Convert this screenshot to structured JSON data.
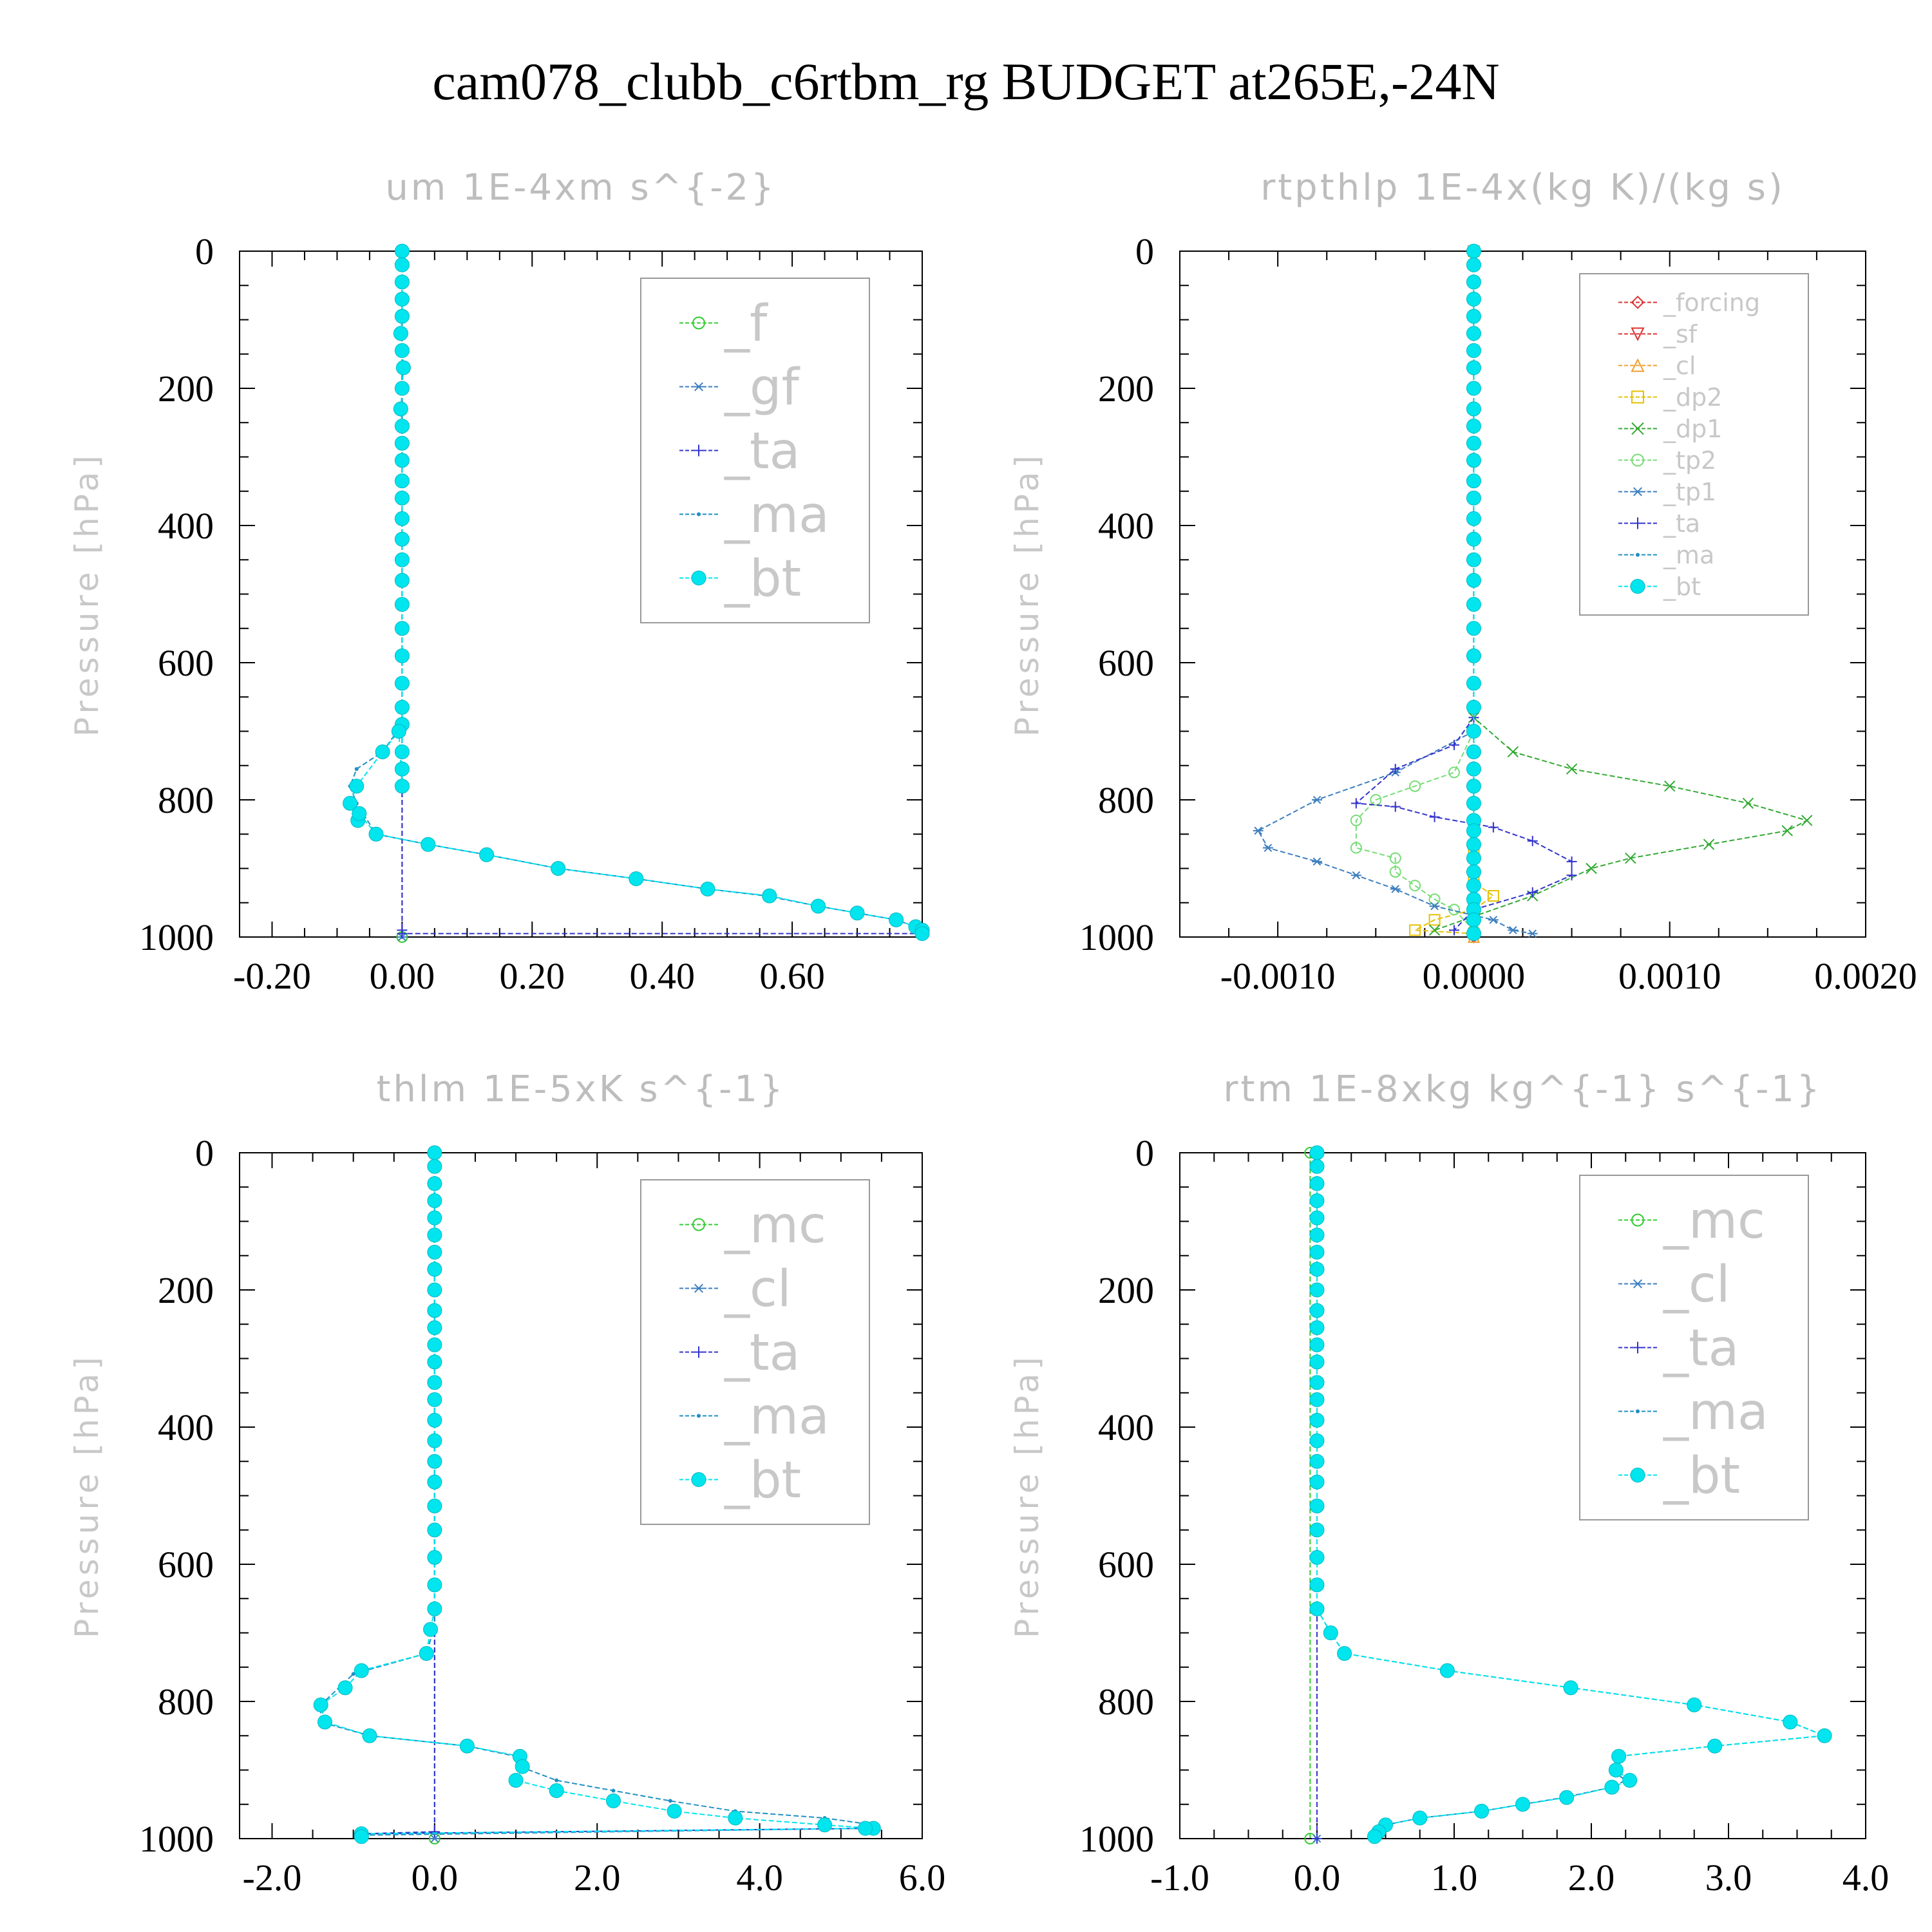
{
  "title": "cam078_clubb_c6rtbm_rg  BUDGET at265E,-24N",
  "chart_data": [
    {
      "type": "line",
      "title": "um   1E-4xm s^{-2}",
      "ylabel": "Pressure [hPa]",
      "xlim": [
        -0.25,
        0.8
      ],
      "ylim": [
        0,
        1000
      ],
      "y_inverted": true,
      "xticks": [
        -0.2,
        0.0,
        0.2,
        0.4,
        0.6
      ],
      "xtick_labels": [
        "-0.20",
        "0.00",
        "0.20",
        "0.40",
        "0.60"
      ],
      "yticks": [
        0,
        200,
        400,
        600,
        800,
        1000
      ],
      "ytick_labels": [
        "0",
        "200",
        "400",
        "600",
        "800",
        "1000"
      ],
      "legend_size": "large",
      "series": [
        {
          "name": "_f",
          "color": "#33cc33",
          "marker": "circle",
          "x": [
            0.0,
            0.0
          ],
          "y": [
            0,
            1000
          ]
        },
        {
          "name": "_gf",
          "color": "#3d7fbf",
          "marker": "star",
          "x": [
            0.0,
            0.0
          ],
          "y": [
            0,
            1000
          ]
        },
        {
          "name": "_ta",
          "color": "#3333cc",
          "marker": "plus",
          "x": [
            0.0,
            0.0,
            0.0,
            0.8
          ],
          "y": [
            0,
            990,
            995,
            995
          ]
        },
        {
          "name": "_ma",
          "color": "#1f8fc4",
          "marker": "dot",
          "x": [
            0.0,
            0.0,
            -0.03,
            -0.07,
            -0.08,
            -0.07,
            -0.04,
            0.04,
            0.13,
            0.24,
            0.36,
            0.47,
            0.56,
            0.64,
            0.7,
            0.76,
            0.79,
            0.8
          ],
          "y": [
            0,
            690,
            730,
            755,
            780,
            805,
            850,
            865,
            880,
            900,
            915,
            930,
            940,
            955,
            965,
            975,
            985,
            995
          ]
        },
        {
          "name": "_bt",
          "color": "#00e5ee",
          "marker": "bigdot",
          "x": [
            0.0,
            0.0,
            0.0,
            0.0,
            0.0,
            -0.002,
            0.0,
            0.002,
            0.0,
            -0.002,
            0.0,
            0.0,
            0.0,
            0.0,
            0.0,
            0.0,
            0.0,
            0.0,
            0.0,
            0.0,
            0.0,
            0.0,
            0.0,
            0.0,
            0.0,
            0.0,
            0.0,
            0.0,
            -0.005,
            -0.03,
            -0.07,
            -0.08,
            -0.068,
            -0.066,
            -0.04,
            0.04,
            0.13,
            0.24,
            0.36,
            0.47,
            0.565,
            0.64,
            0.7,
            0.76,
            0.79,
            0.8,
            0.8
          ],
          "y": [
            0,
            20,
            45,
            70,
            95,
            120,
            145,
            170,
            200,
            230,
            255,
            280,
            305,
            335,
            360,
            390,
            420,
            450,
            480,
            515,
            550,
            590,
            630,
            665,
            690,
            730,
            755,
            780,
            700,
            730,
            780,
            805,
            830,
            820,
            850,
            865,
            880,
            900,
            915,
            930,
            940,
            955,
            965,
            975,
            985,
            990,
            995
          ]
        }
      ]
    },
    {
      "type": "line",
      "title": "rtpthlp   1E-4x(kg K)/(kg s)",
      "ylabel": "Pressure [hPa]",
      "xlim": [
        -0.0015,
        0.002
      ],
      "ylim": [
        0,
        1000
      ],
      "y_inverted": true,
      "xticks": [
        -0.001,
        0.0,
        0.001,
        0.002
      ],
      "xtick_labels": [
        "-0.0010",
        "0.0000",
        "0.0010",
        "0.0020"
      ],
      "yticks": [
        0,
        200,
        400,
        600,
        800,
        1000
      ],
      "ytick_labels": [
        "0",
        "200",
        "400",
        "600",
        "800",
        "1000"
      ],
      "legend_size": "small",
      "series": [
        {
          "name": "_forcing",
          "color": "#dd3333",
          "marker": "diamond",
          "x": [
            0.0,
            0.0
          ],
          "y": [
            0,
            1000
          ]
        },
        {
          "name": "_sf",
          "color": "#dd3333",
          "marker": "tridown",
          "x": [
            0.0,
            0.0
          ],
          "y": [
            0,
            1000
          ]
        },
        {
          "name": "_cl",
          "color": "#f0a030",
          "marker": "triup",
          "x": [
            0.0,
            0.0
          ],
          "y": [
            0,
            1000
          ]
        },
        {
          "name": "_dp2",
          "color": "#e6c000",
          "marker": "square",
          "x": [
            0.0,
            0.0,
            0.0,
            0.0001,
            0.0,
            -0.0002,
            -0.0003,
            0.0
          ],
          "y": [
            0,
            880,
            920,
            940,
            960,
            975,
            990,
            995
          ]
        },
        {
          "name": "_dp1",
          "color": "#33aa33",
          "marker": "x",
          "x": [
            0.0,
            0.0,
            0.0002,
            0.0005,
            0.001,
            0.0014,
            0.0017,
            0.0016,
            0.0012,
            0.0008,
            0.0006,
            0.0003,
            0.0,
            -0.0002
          ],
          "y": [
            0,
            680,
            730,
            755,
            780,
            805,
            830,
            845,
            865,
            885,
            900,
            940,
            970,
            990
          ]
        },
        {
          "name": "_tp2",
          "color": "#77dd77",
          "marker": "circle",
          "x": [
            0.0,
            -0.0001,
            -0.0003,
            -0.0005,
            -0.0006,
            -0.0006,
            -0.0004,
            -0.0004,
            -0.0003,
            -0.0002,
            -0.0001,
            0.0
          ],
          "y": [
            700,
            760,
            780,
            800,
            830,
            870,
            885,
            905,
            925,
            945,
            960,
            990
          ]
        },
        {
          "name": "_tp1",
          "color": "#3d7fbf",
          "marker": "star",
          "x": [
            0.0,
            -0.0004,
            -0.0008,
            -0.0011,
            -0.00105,
            -0.0008,
            -0.0006,
            -0.0004,
            -0.0002,
            0.0001,
            0.0002,
            0.0003
          ],
          "y": [
            700,
            760,
            800,
            845,
            870,
            890,
            910,
            930,
            955,
            975,
            990,
            995
          ]
        },
        {
          "name": "_ta",
          "color": "#3333cc",
          "marker": "plus",
          "x": [
            0.0,
            -0.0001,
            -0.0004,
            -0.0006,
            -0.0004,
            -0.0002,
            0.0001,
            0.0003,
            0.0005,
            0.0005,
            0.0003,
            0.0,
            -0.0001
          ],
          "y": [
            680,
            720,
            755,
            805,
            810,
            825,
            840,
            860,
            890,
            910,
            935,
            960,
            990
          ]
        },
        {
          "name": "_ma",
          "color": "#1f8fc4",
          "marker": "dot",
          "x": [
            0.0,
            0.0
          ],
          "y": [
            0,
            1000
          ]
        },
        {
          "name": "_bt",
          "color": "#00e5ee",
          "marker": "bigdot",
          "x": [
            0.0,
            0.0,
            0.0,
            0.0,
            0.0,
            0.0,
            0.0,
            0.0,
            0.0,
            0.0,
            0.0,
            0.0,
            0.0,
            0.0,
            0.0,
            0.0,
            0.0,
            0.0,
            0.0,
            0.0,
            0.0,
            0.0,
            0.0,
            0.0,
            0.0,
            0.0,
            0.0,
            0.0,
            0.0,
            0.0,
            0.0,
            0.0,
            0.0,
            0.0,
            0.0,
            0.0,
            0.0,
            0.0,
            0.0
          ],
          "y": [
            0,
            20,
            45,
            70,
            95,
            120,
            145,
            170,
            200,
            230,
            255,
            280,
            305,
            335,
            360,
            390,
            420,
            450,
            480,
            515,
            550,
            590,
            630,
            665,
            700,
            730,
            755,
            780,
            805,
            830,
            845,
            865,
            885,
            905,
            925,
            945,
            960,
            975,
            995
          ]
        }
      ]
    },
    {
      "type": "line",
      "title": "thlm   1E-5xK s^{-1}",
      "ylabel": "Pressure [hPa]",
      "xlim": [
        -2.4,
        6.0
      ],
      "ylim": [
        0,
        1000
      ],
      "y_inverted": true,
      "xticks": [
        -2.0,
        0.0,
        2.0,
        4.0,
        6.0
      ],
      "xtick_labels": [
        "-2.0",
        "0.0",
        "2.0",
        "4.0",
        "6.0"
      ],
      "yticks": [
        0,
        200,
        400,
        600,
        800,
        1000
      ],
      "ytick_labels": [
        "0",
        "200",
        "400",
        "600",
        "800",
        "1000"
      ],
      "legend_size": "large",
      "series": [
        {
          "name": "_mc",
          "color": "#33cc33",
          "marker": "circle",
          "x": [
            0.0,
            0.0
          ],
          "y": [
            0,
            1000
          ]
        },
        {
          "name": "_cl",
          "color": "#3d7fbf",
          "marker": "star",
          "x": [
            0.0,
            0.0
          ],
          "y": [
            0,
            1000
          ]
        },
        {
          "name": "_ta",
          "color": "#3333cc",
          "marker": "plus",
          "x": [
            0.0,
            0.0,
            -0.9,
            5.4
          ],
          "y": [
            0,
            990,
            993,
            985
          ]
        },
        {
          "name": "_ma",
          "color": "#1f8fc4",
          "marker": "dot",
          "x": [
            0.0,
            0.0,
            -0.1,
            -1.0,
            -1.4,
            -1.4,
            -0.8,
            0.4,
            1.0,
            1.05,
            1.5,
            2.2,
            2.9,
            3.7,
            4.8,
            5.4,
            5.3,
            -0.9
          ],
          "y": [
            0,
            690,
            730,
            760,
            805,
            830,
            850,
            865,
            880,
            895,
            915,
            930,
            945,
            960,
            970,
            980,
            985,
            995
          ]
        },
        {
          "name": "_bt",
          "color": "#00e5ee",
          "marker": "bigdot",
          "x": [
            0.0,
            0.0,
            0.0,
            0.0,
            0.0,
            0.0,
            0.0,
            0.0,
            0.0,
            0.0,
            0.0,
            0.0,
            0.0,
            0.0,
            0.0,
            0.0,
            0.0,
            0.0,
            0.0,
            0.0,
            0.0,
            0.0,
            0.0,
            0.0,
            -0.05,
            -0.1,
            -0.9,
            -1.1,
            -1.4,
            -1.35,
            -0.8,
            0.4,
            1.05,
            1.08,
            1.0,
            1.5,
            2.2,
            2.95,
            3.7,
            4.8,
            5.4,
            5.3,
            -0.9,
            -0.9
          ],
          "y": [
            0,
            20,
            45,
            70,
            95,
            120,
            145,
            170,
            200,
            230,
            255,
            280,
            305,
            335,
            360,
            390,
            420,
            450,
            480,
            515,
            550,
            590,
            630,
            665,
            695,
            730,
            755,
            780,
            805,
            830,
            850,
            865,
            880,
            895,
            915,
            930,
            945,
            960,
            970,
            980,
            985,
            985,
            993,
            997
          ]
        }
      ]
    },
    {
      "type": "line",
      "title": "rtm   1E-8xkg kg^{-1} s^{-1}",
      "ylabel": "Pressure [hPa]",
      "xlim": [
        -1.0,
        4.0
      ],
      "ylim": [
        0,
        1000
      ],
      "y_inverted": true,
      "xticks": [
        -1.0,
        0.0,
        1.0,
        2.0,
        3.0,
        4.0
      ],
      "xtick_labels": [
        "-1.0",
        "0.0",
        "1.0",
        "2.0",
        "3.0",
        "4.0"
      ],
      "yticks": [
        0,
        200,
        400,
        600,
        800,
        1000
      ],
      "ytick_labels": [
        "0",
        "200",
        "400",
        "600",
        "800",
        "1000"
      ],
      "legend_size": "large",
      "series": [
        {
          "name": "_mc",
          "color": "#33cc33",
          "marker": "circle",
          "x": [
            -0.05,
            -0.05
          ],
          "y": [
            0,
            1000
          ]
        },
        {
          "name": "_cl",
          "color": "#3d7fbf",
          "marker": "star",
          "x": [
            0.0,
            0.0
          ],
          "y": [
            0,
            1000
          ]
        },
        {
          "name": "_ta",
          "color": "#3333cc",
          "marker": "plus",
          "x": [
            0.0,
            0.0
          ],
          "y": [
            0,
            1000
          ]
        },
        {
          "name": "_ma",
          "color": "#1f8fc4",
          "marker": "dot",
          "x": [
            0.0,
            0.0,
            0.1,
            0.2,
            0.95,
            1.85,
            2.75,
            3.45,
            3.7,
            2.9,
            2.2,
            2.15,
            2.25,
            2.15,
            1.8,
            1.5,
            1.2,
            0.75,
            0.5,
            0.45,
            0.42
          ],
          "y": [
            0,
            665,
            700,
            730,
            755,
            780,
            805,
            830,
            850,
            865,
            880,
            900,
            915,
            925,
            940,
            950,
            960,
            970,
            980,
            990,
            997
          ]
        },
        {
          "name": "_bt",
          "color": "#00e5ee",
          "marker": "bigdot",
          "x": [
            0.0,
            0.0,
            0.0,
            0.0,
            0.0,
            0.0,
            0.0,
            0.0,
            0.0,
            0.0,
            0.0,
            0.0,
            0.0,
            0.0,
            0.0,
            0.0,
            0.0,
            0.0,
            0.0,
            0.0,
            0.0,
            0.0,
            0.0,
            0.0,
            0.1,
            0.2,
            0.95,
            1.85,
            2.75,
            3.45,
            3.7,
            2.9,
            2.2,
            2.18,
            2.28,
            2.15,
            1.82,
            1.5,
            1.2,
            0.75,
            0.5,
            0.45,
            0.42
          ],
          "y": [
            0,
            20,
            45,
            70,
            95,
            120,
            145,
            170,
            200,
            230,
            255,
            280,
            305,
            335,
            360,
            390,
            420,
            450,
            480,
            515,
            550,
            590,
            630,
            665,
            700,
            730,
            755,
            780,
            805,
            830,
            850,
            865,
            880,
            900,
            915,
            925,
            940,
            950,
            960,
            970,
            980,
            990,
            997
          ]
        }
      ]
    }
  ]
}
